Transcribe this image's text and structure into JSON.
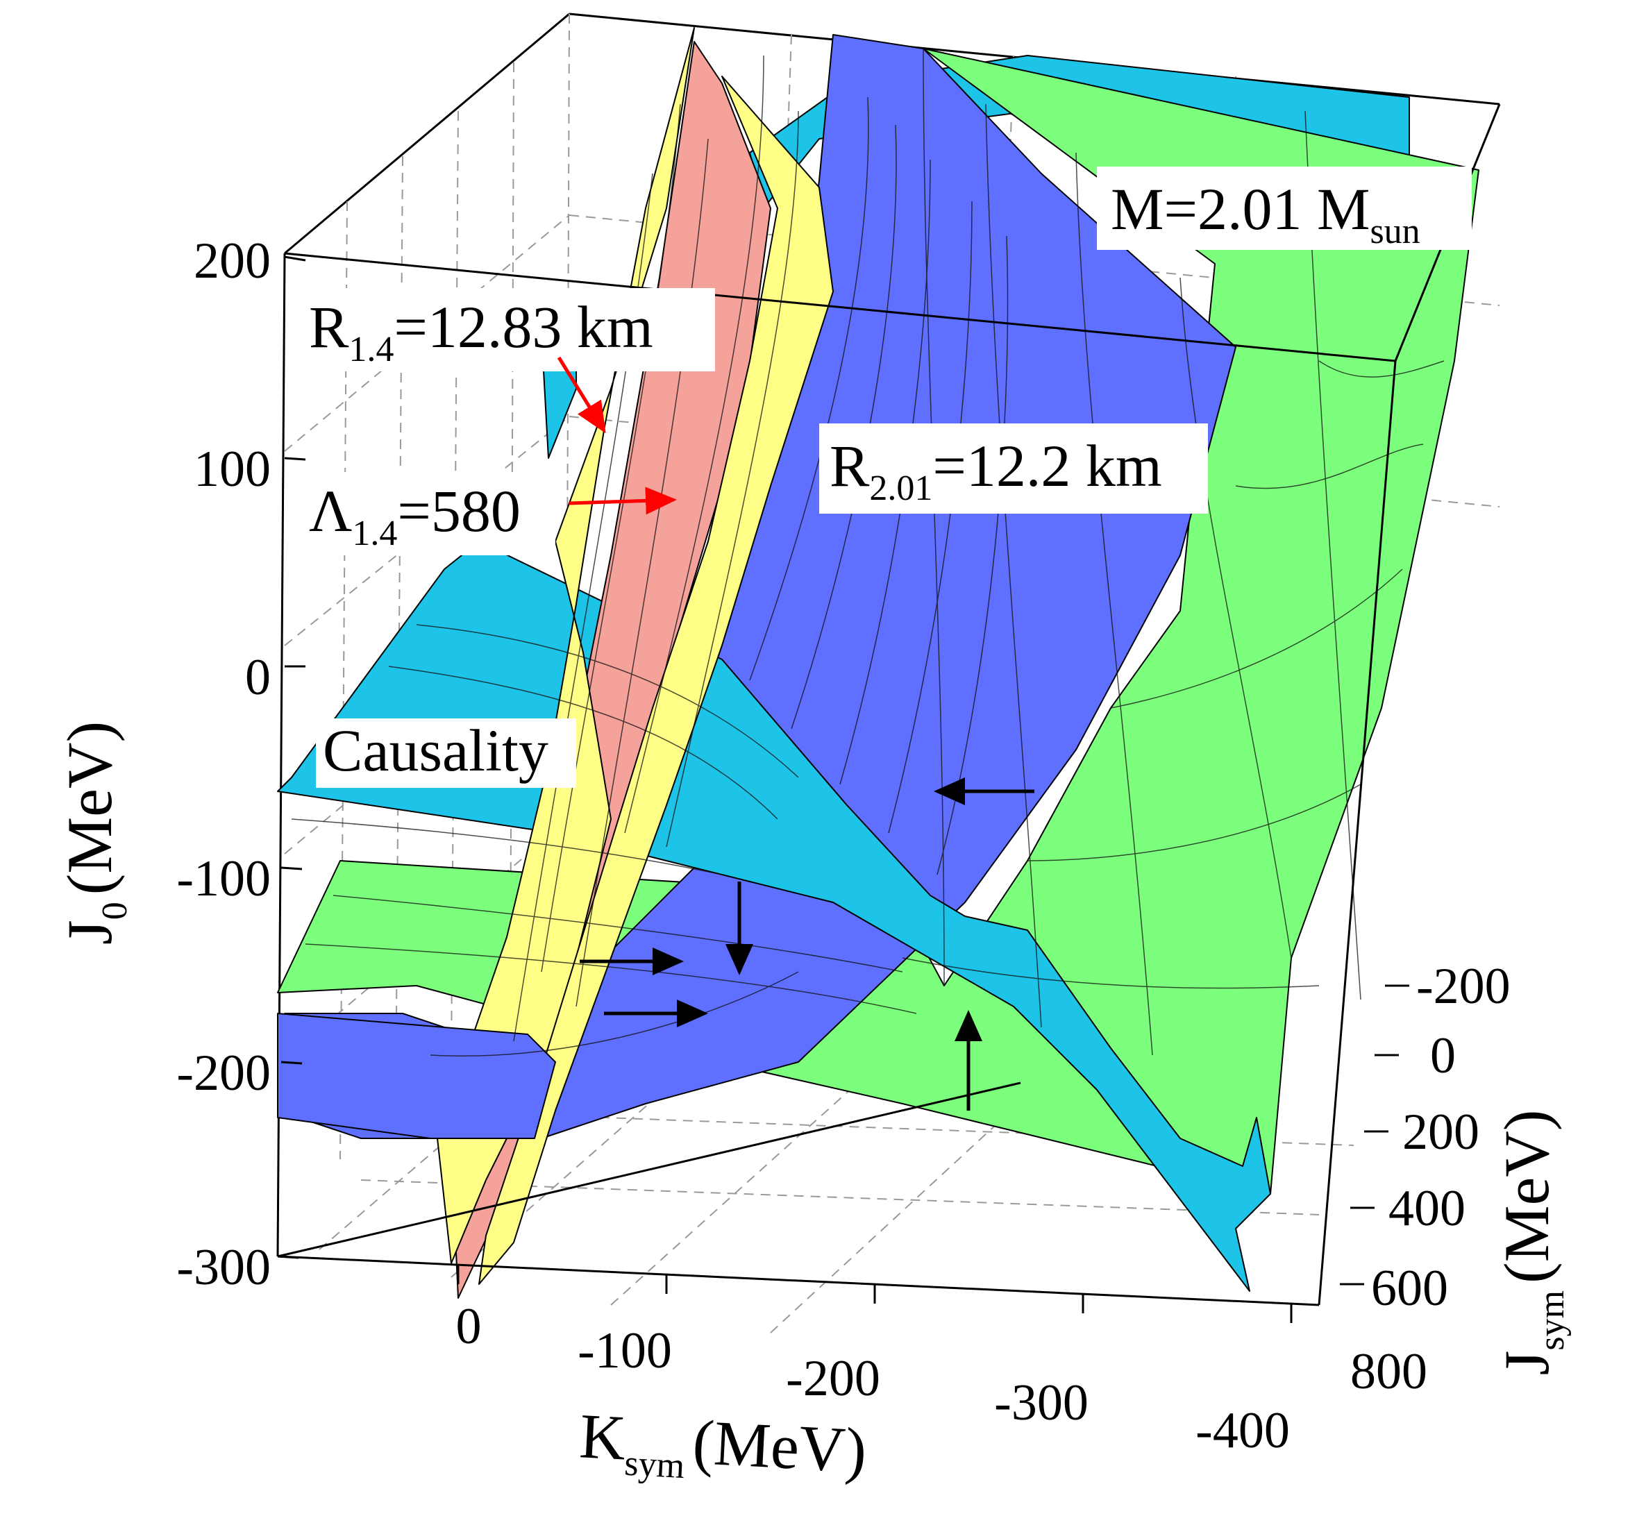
{
  "chart_data": {
    "type": "surface3d",
    "title": "",
    "axes": {
      "x": {
        "label": "K",
        "label_sub": "sym",
        "unit": "(MeV)",
        "ticks": [
          "0",
          "-100",
          "-200",
          "-300",
          "-400"
        ],
        "range": [
          100,
          -400
        ]
      },
      "y": {
        "label": "J",
        "label_sub": "sym",
        "unit": "(MeV)",
        "ticks": [
          "-200",
          "0",
          "200",
          "400",
          "600",
          "800"
        ],
        "range": [
          -250,
          850
        ]
      },
      "z": {
        "label": "J",
        "label_sub": "0",
        "unit": "(MeV)",
        "ticks": [
          "200",
          "100",
          "0",
          "-100",
          "-200",
          "-300"
        ],
        "range": [
          -300,
          200
        ]
      }
    },
    "grid": true,
    "surfaces": [
      {
        "color": "#7cff7c",
        "main": "M=2.01 M",
        "sub": "sun"
      },
      {
        "color": "#5f6fff",
        "main": "R",
        "sub": "2.01",
        "tail": "=12.2 km"
      },
      {
        "color": "#f4a29a",
        "main": "Λ",
        "sub": "1.4",
        "tail": "=580"
      },
      {
        "color": "#ffff88",
        "main": "R",
        "sub": "1.4",
        "tail": "=12.83 km"
      },
      {
        "color": "#1ec3e8",
        "main": "Causality"
      }
    ],
    "arrow_colors": {
      "label_arrows": "#ff0000",
      "constraint_arrows": "#000000"
    }
  }
}
